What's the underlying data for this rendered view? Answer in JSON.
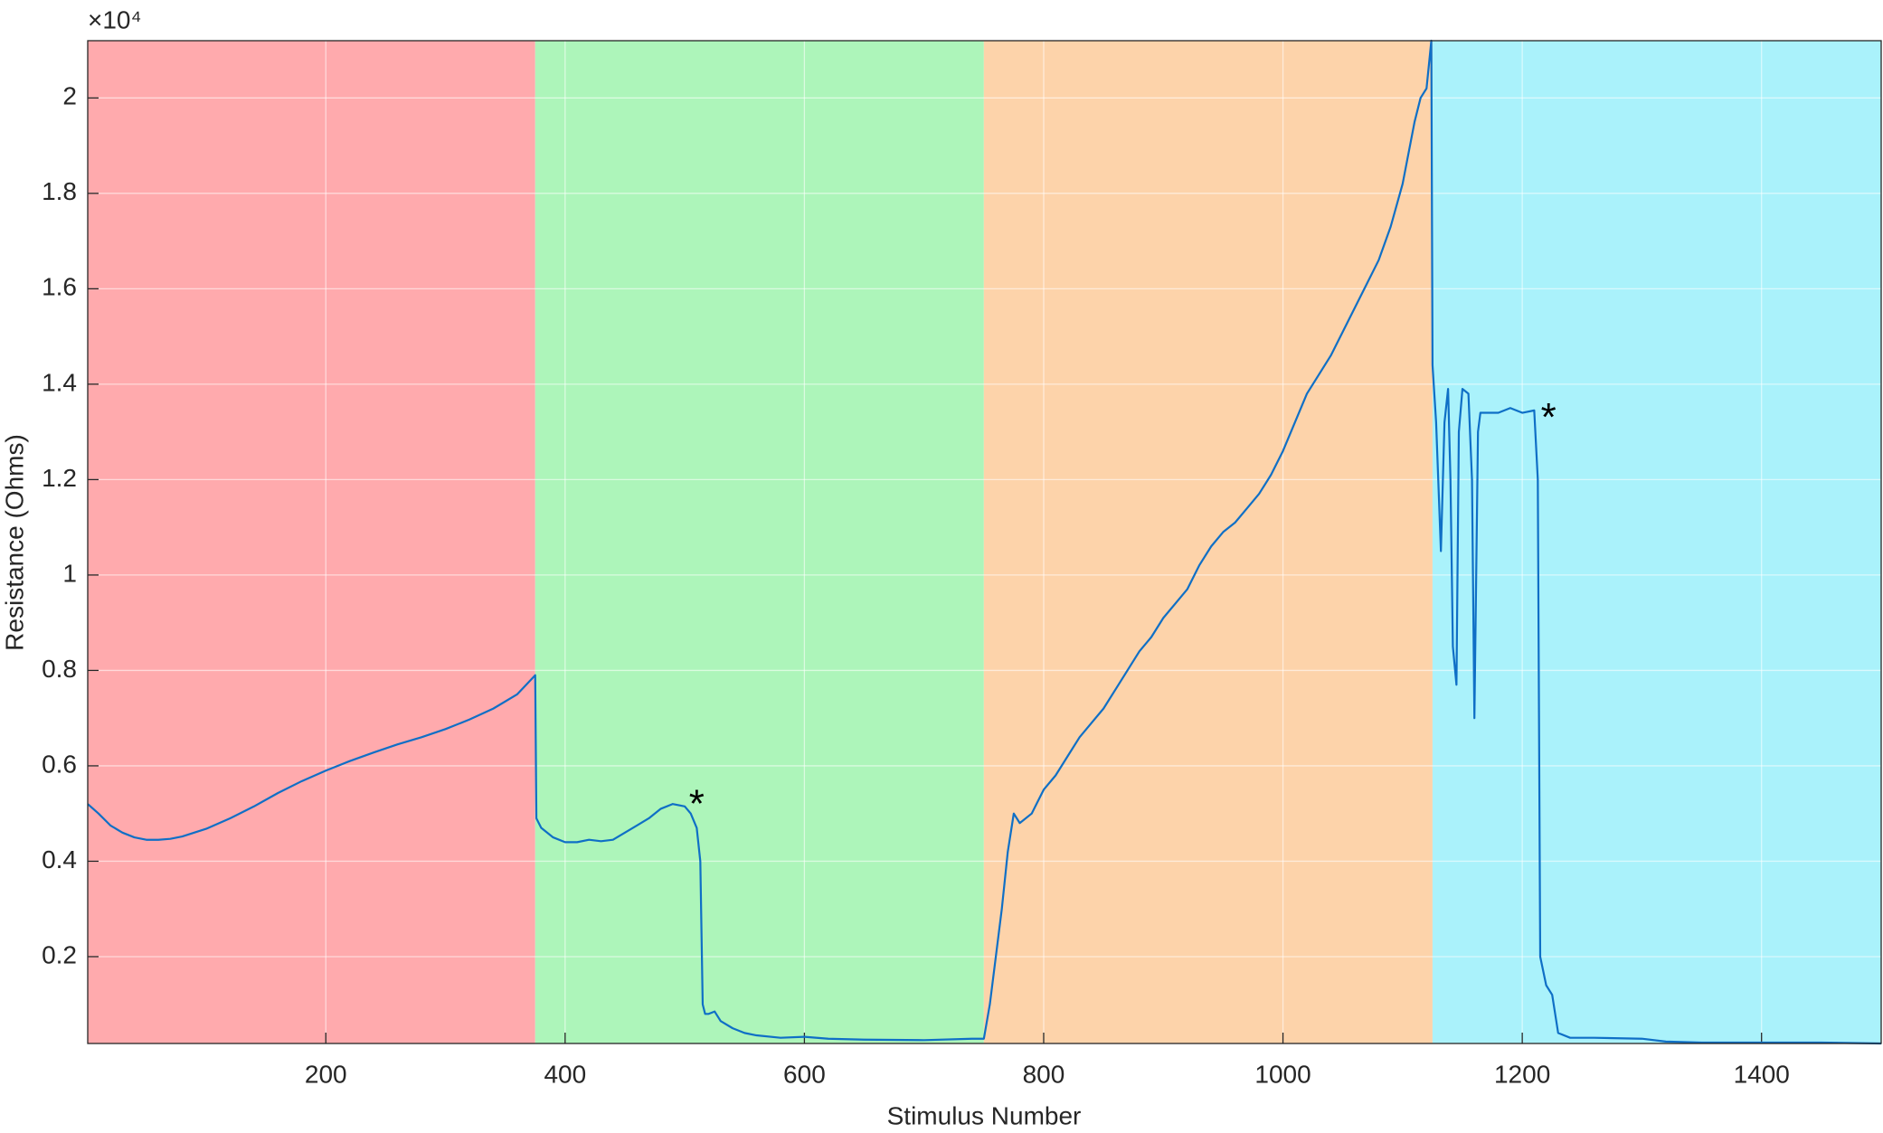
{
  "chart_data": {
    "type": "line",
    "xlabel": "Stimulus Number",
    "ylabel": "Resistance (Ohms)",
    "y_exponent_label": "×10⁴",
    "xlim": [
      1,
      1500
    ],
    "ylim": [
      0.018,
      2.12
    ],
    "xticks": [
      200,
      400,
      600,
      800,
      1000,
      1200,
      1400
    ],
    "yticks": [
      0.2,
      0.4,
      0.6,
      0.8,
      1,
      1.2,
      1.4,
      1.6,
      1.8,
      2
    ],
    "grid": true,
    "regions": [
      {
        "start": 1,
        "end": 375,
        "color": "#ffaaad"
      },
      {
        "start": 375,
        "end": 750,
        "color": "#adf5ba"
      },
      {
        "start": 750,
        "end": 1125,
        "color": "#fdd3aa"
      },
      {
        "start": 1125,
        "end": 1500,
        "color": "#aaf2fb"
      }
    ],
    "annotations": [
      {
        "text": "*",
        "x": 510,
        "y": 0.53
      },
      {
        "text": "*",
        "x": 1222,
        "y": 1.34
      }
    ],
    "series": [
      {
        "name": "Resistance",
        "color": "#0f6fc6",
        "x": [
          1,
          10,
          20,
          30,
          40,
          50,
          60,
          70,
          80,
          90,
          100,
          120,
          140,
          160,
          180,
          200,
          220,
          240,
          260,
          280,
          300,
          320,
          340,
          360,
          375,
          376,
          380,
          390,
          400,
          410,
          420,
          430,
          440,
          450,
          460,
          470,
          480,
          490,
          500,
          505,
          510,
          513,
          515,
          517,
          520,
          525,
          530,
          540,
          550,
          560,
          580,
          600,
          620,
          650,
          700,
          740,
          750,
          755,
          760,
          765,
          770,
          775,
          780,
          790,
          800,
          810,
          820,
          830,
          840,
          850,
          860,
          870,
          880,
          890,
          900,
          910,
          920,
          930,
          940,
          950,
          960,
          970,
          980,
          990,
          1000,
          1010,
          1020,
          1030,
          1040,
          1050,
          1060,
          1070,
          1080,
          1090,
          1100,
          1110,
          1115,
          1120,
          1124,
          1125,
          1128,
          1132,
          1135,
          1138,
          1140,
          1142,
          1145,
          1147,
          1150,
          1155,
          1158,
          1160,
          1163,
          1165,
          1180,
          1190,
          1200,
          1210,
          1213,
          1215,
          1220,
          1225,
          1230,
          1240,
          1260,
          1300,
          1320,
          1350,
          1400,
          1450,
          1500
        ],
        "values": [
          0.52,
          0.5,
          0.475,
          0.46,
          0.45,
          0.445,
          0.445,
          0.447,
          0.452,
          0.46,
          0.468,
          0.49,
          0.515,
          0.543,
          0.568,
          0.59,
          0.61,
          0.628,
          0.645,
          0.66,
          0.677,
          0.697,
          0.72,
          0.75,
          0.79,
          0.49,
          0.47,
          0.45,
          0.44,
          0.44,
          0.445,
          0.442,
          0.445,
          0.46,
          0.475,
          0.49,
          0.51,
          0.52,
          0.515,
          0.5,
          0.47,
          0.4,
          0.1,
          0.08,
          0.08,
          0.085,
          0.065,
          0.05,
          0.04,
          0.035,
          0.03,
          0.032,
          0.028,
          0.026,
          0.025,
          0.028,
          0.028,
          0.1,
          0.2,
          0.3,
          0.42,
          0.5,
          0.48,
          0.5,
          0.55,
          0.58,
          0.62,
          0.66,
          0.69,
          0.72,
          0.76,
          0.8,
          0.84,
          0.87,
          0.91,
          0.94,
          0.97,
          1.02,
          1.06,
          1.09,
          1.11,
          1.14,
          1.17,
          1.21,
          1.26,
          1.32,
          1.38,
          1.42,
          1.46,
          1.51,
          1.56,
          1.61,
          1.66,
          1.73,
          1.82,
          1.95,
          2.0,
          2.02,
          2.12,
          1.44,
          1.32,
          1.05,
          1.32,
          1.39,
          1.2,
          0.85,
          0.77,
          1.3,
          1.39,
          1.38,
          1.2,
          0.7,
          1.3,
          1.34,
          1.34,
          1.35,
          1.34,
          1.345,
          1.2,
          0.2,
          0.14,
          0.12,
          0.04,
          0.03,
          0.03,
          0.028,
          0.022,
          0.02,
          0.02,
          0.02,
          0.018
        ]
      }
    ]
  }
}
